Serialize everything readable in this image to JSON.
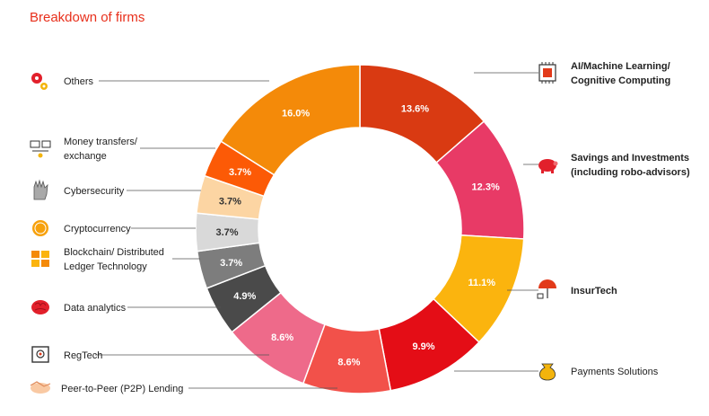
{
  "chart_data": {
    "type": "pie",
    "title": "Breakdown of firms",
    "donut": true,
    "slices": [
      {
        "category": "AI/Machine Learning/ Cognitive Computing",
        "lines": [
          "AI/Machine Learning/",
          "Cognitive Computing"
        ],
        "value": 13.6,
        "label": "13.6%",
        "color": "#d93a12",
        "icon": "cpu-chip-icon"
      },
      {
        "category": "Savings and Investments (including robo-advisors)",
        "lines": [
          "Savings and Investments",
          "(including robo-advisors)"
        ],
        "value": 12.3,
        "label": "12.3%",
        "color": "#e83a66",
        "icon": "piggy-bank-icon"
      },
      {
        "category": "InsurTech",
        "lines": [
          "InsurTech"
        ],
        "value": 11.1,
        "label": "11.1%",
        "color": "#fbb40e",
        "icon": "umbrella-icon"
      },
      {
        "category": "Payments Solutions",
        "lines": [
          "Payments Solutions"
        ],
        "value": 9.9,
        "label": "9.9%",
        "color": "#e40d16",
        "icon": "money-bag-icon"
      },
      {
        "category": "Peer-to-Peer (P2P) Lending",
        "lines": [
          "Peer-to-Peer (P2P) Lending"
        ],
        "value": 8.6,
        "label": "8.6%",
        "color": "#f2514a",
        "icon": "handshake-icon"
      },
      {
        "category": "RegTech",
        "lines": [
          "RegTech"
        ],
        "value": 8.6,
        "label": "8.6%",
        "color": "#ee6a8a",
        "icon": "safe-icon"
      },
      {
        "category": "Data analytics",
        "lines": [
          "Data analytics"
        ],
        "value": 4.9,
        "label": "4.9%",
        "color": "#4a4a4a",
        "icon": "brain-icon"
      },
      {
        "category": "Blockchain/ Distributed Ledger Technology",
        "lines": [
          "Blockchain/ Distributed",
          "Ledger Technology"
        ],
        "value": 3.7,
        "label": "3.7%",
        "color": "#7d7d7d",
        "icon": "blocks-icon"
      },
      {
        "category": "Cryptocurrency",
        "lines": [
          "Cryptocurrency"
        ],
        "value": 3.7,
        "label": "3.7%",
        "color": "#d9d9d9",
        "icon": "coin-icon"
      },
      {
        "category": "Cybersecurity",
        "lines": [
          "Cybersecurity"
        ],
        "value": 3.7,
        "label": "3.7%",
        "color": "#fcd5a3",
        "icon": "glove-icon"
      },
      {
        "category": "Money transfers/ exchange",
        "lines": [
          "Money transfers/",
          "exchange"
        ],
        "value": 3.7,
        "label": "3.7%",
        "color": "#fc5a06",
        "icon": "transfer-icon"
      },
      {
        "category": "Others",
        "lines": [
          "Others"
        ],
        "value": 16.0,
        "label": "16.0%",
        "color": "#f48a09",
        "icon": "gears-icon"
      }
    ]
  }
}
